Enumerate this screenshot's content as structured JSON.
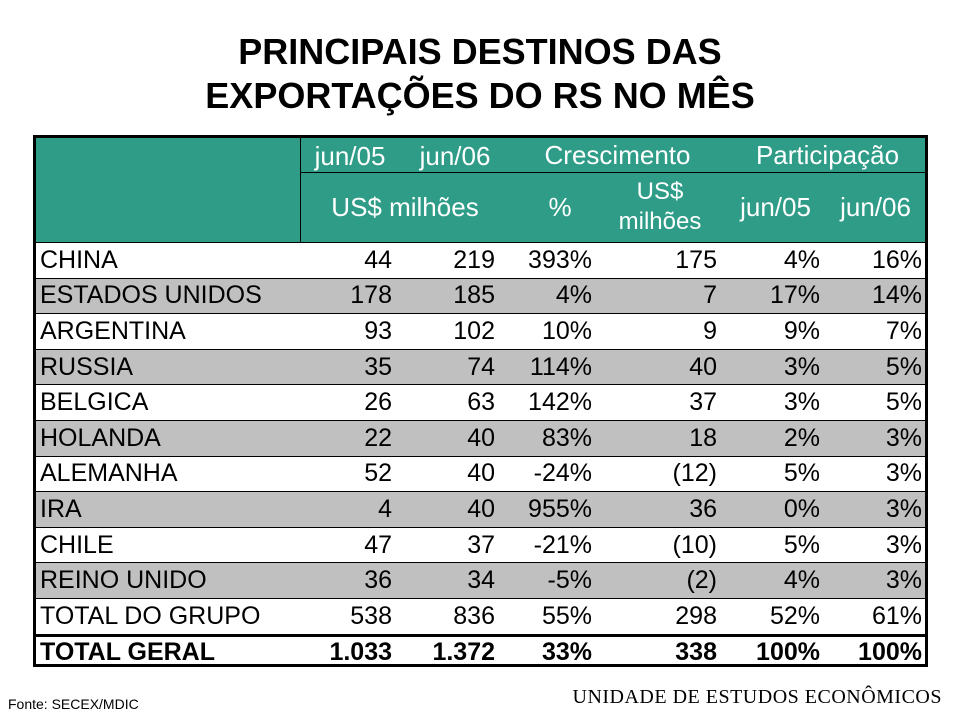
{
  "title": {
    "line1": "PRINCIPAIS DESTINOS DAS",
    "line2": "EXPORTAÇÕES DO RS NO MÊS"
  },
  "header": {
    "jun05": "jun/05",
    "jun06": "jun/06",
    "crescimento": "Crescimento",
    "participacao": "Participação",
    "usd_milhoes": "US$ milhões",
    "pct": "%",
    "usd": "US$",
    "milhoes": "milhões",
    "p_jun05": "jun/05",
    "p_jun06": "jun/06"
  },
  "rows": [
    {
      "name": "CHINA",
      "v05": "44",
      "v06": "219",
      "pct": "393%",
      "usd": "175",
      "p05": "4%",
      "p06": "16%"
    },
    {
      "name": "ESTADOS UNIDOS",
      "v05": "178",
      "v06": "185",
      "pct": "4%",
      "usd": "7",
      "p05": "17%",
      "p06": "14%"
    },
    {
      "name": "ARGENTINA",
      "v05": "93",
      "v06": "102",
      "pct": "10%",
      "usd": "9",
      "p05": "9%",
      "p06": "7%"
    },
    {
      "name": "RUSSIA",
      "v05": "35",
      "v06": "74",
      "pct": "114%",
      "usd": "40",
      "p05": "3%",
      "p06": "5%"
    },
    {
      "name": "BELGICA",
      "v05": "26",
      "v06": "63",
      "pct": "142%",
      "usd": "37",
      "p05": "3%",
      "p06": "5%"
    },
    {
      "name": "HOLANDA",
      "v05": "22",
      "v06": "40",
      "pct": "83%",
      "usd": "18",
      "p05": "2%",
      "p06": "3%"
    },
    {
      "name": "ALEMANHA",
      "v05": "52",
      "v06": "40",
      "pct": "-24%",
      "usd": "(12)",
      "p05": "5%",
      "p06": "3%"
    },
    {
      "name": "IRA",
      "v05": "4",
      "v06": "40",
      "pct": "955%",
      "usd": "36",
      "p05": "0%",
      "p06": "3%"
    },
    {
      "name": "CHILE",
      "v05": "47",
      "v06": "37",
      "pct": "-21%",
      "usd": "(10)",
      "p05": "5%",
      "p06": "3%"
    },
    {
      "name": "REINO UNIDO",
      "v05": "36",
      "v06": "34",
      "pct": "-5%",
      "usd": "(2)",
      "p05": "4%",
      "p06": "3%"
    },
    {
      "name": "TOTAL DO GRUPO",
      "v05": "538",
      "v06": "836",
      "pct": "55%",
      "usd": "298",
      "p05": "52%",
      "p06": "61%"
    },
    {
      "name": "TOTAL GERAL",
      "v05": "1.033",
      "v06": "1.372",
      "pct": "33%",
      "usd": "338",
      "p05": "100%",
      "p06": "100%"
    }
  ],
  "footer": {
    "fonte": "Fonte: SECEX/MDIC",
    "unidade": "UNIDADE DE ESTUDOS ECONÔMICOS"
  },
  "colors": {
    "header_bg": "#2e9c87",
    "row_alt": "#c0c0c0"
  }
}
